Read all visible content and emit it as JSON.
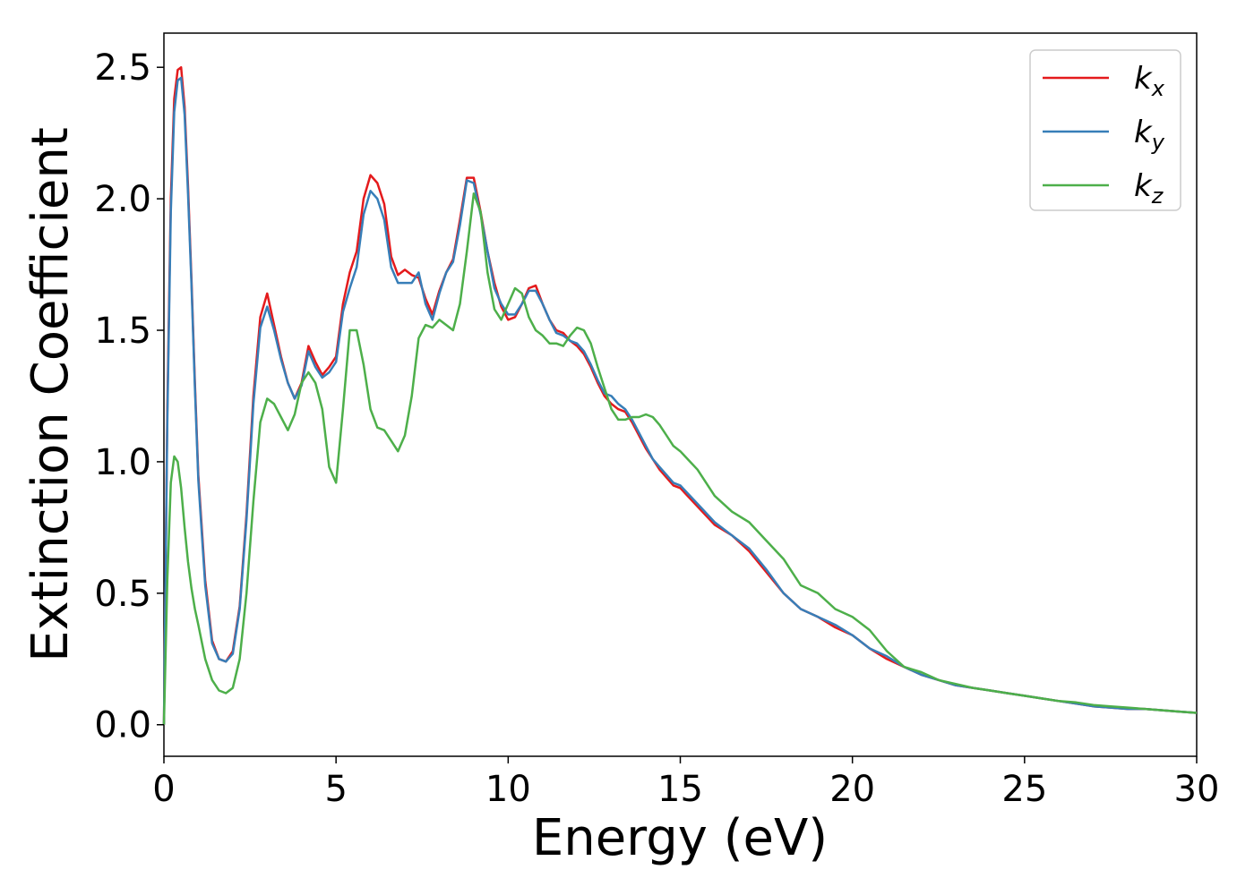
{
  "chart_data": {
    "type": "line",
    "xlabel": "Energy (eV)",
    "ylabel": "Extinction Coefficient",
    "xlim": [
      0,
      30
    ],
    "ylim": [
      -0.12,
      2.63
    ],
    "xticks": [
      "0",
      "5",
      "10",
      "15",
      "20",
      "25",
      "30"
    ],
    "yticks": [
      "0.0",
      "0.5",
      "1.0",
      "1.5",
      "2.0",
      "2.5"
    ],
    "grid": false,
    "legend_position": "top-right",
    "series": [
      {
        "name": "k_x",
        "legend_main": "k",
        "legend_sub": "x",
        "color": "#e41a1c",
        "x": [
          0,
          0.1,
          0.2,
          0.3,
          0.4,
          0.5,
          0.6,
          0.7,
          0.8,
          0.9,
          1.0,
          1.2,
          1.4,
          1.6,
          1.8,
          2.0,
          2.2,
          2.4,
          2.6,
          2.8,
          3.0,
          3.2,
          3.4,
          3.6,
          3.8,
          4.0,
          4.2,
          4.4,
          4.6,
          4.8,
          5.0,
          5.2,
          5.4,
          5.6,
          5.8,
          6.0,
          6.2,
          6.4,
          6.6,
          6.8,
          7.0,
          7.2,
          7.4,
          7.6,
          7.8,
          8.0,
          8.2,
          8.4,
          8.6,
          8.8,
          9.0,
          9.2,
          9.4,
          9.6,
          9.8,
          10.0,
          10.2,
          10.4,
          10.6,
          10.8,
          11.0,
          11.2,
          11.4,
          11.6,
          11.8,
          12.0,
          12.2,
          12.4,
          12.6,
          12.8,
          13.0,
          13.2,
          13.4,
          13.6,
          13.8,
          14.0,
          14.2,
          14.4,
          14.6,
          14.8,
          15.0,
          15.5,
          16.0,
          16.5,
          17.0,
          17.5,
          18.0,
          18.5,
          19.0,
          19.5,
          20.0,
          20.5,
          21.0,
          21.5,
          22.0,
          22.5,
          23.0,
          23.5,
          24.0,
          24.5,
          25.0,
          25.5,
          26.0,
          26.5,
          27.0,
          27.5,
          28.0,
          28.5,
          29.0,
          29.5,
          30.0
        ],
        "y": [
          0.0,
          1.2,
          2.0,
          2.38,
          2.49,
          2.5,
          2.35,
          2.05,
          1.7,
          1.3,
          0.95,
          0.55,
          0.32,
          0.25,
          0.24,
          0.28,
          0.45,
          0.8,
          1.25,
          1.55,
          1.64,
          1.52,
          1.4,
          1.3,
          1.24,
          1.3,
          1.44,
          1.38,
          1.33,
          1.36,
          1.4,
          1.6,
          1.72,
          1.8,
          2.0,
          2.09,
          2.06,
          1.98,
          1.78,
          1.71,
          1.73,
          1.71,
          1.7,
          1.62,
          1.56,
          1.65,
          1.72,
          1.77,
          1.92,
          2.08,
          2.08,
          1.95,
          1.8,
          1.68,
          1.59,
          1.54,
          1.55,
          1.6,
          1.66,
          1.67,
          1.6,
          1.54,
          1.5,
          1.49,
          1.46,
          1.44,
          1.41,
          1.36,
          1.3,
          1.25,
          1.22,
          1.2,
          1.19,
          1.15,
          1.1,
          1.05,
          1.01,
          0.97,
          0.94,
          0.91,
          0.9,
          0.83,
          0.76,
          0.72,
          0.66,
          0.58,
          0.5,
          0.44,
          0.41,
          0.37,
          0.34,
          0.29,
          0.25,
          0.22,
          0.19,
          0.17,
          0.15,
          0.14,
          0.13,
          0.12,
          0.11,
          0.1,
          0.09,
          0.08,
          0.07,
          0.065,
          0.06,
          0.06,
          0.055,
          0.05,
          0.045
        ]
      },
      {
        "name": "k_y",
        "legend_main": "k",
        "legend_sub": "y",
        "color": "#377eb8",
        "x": [
          0,
          0.1,
          0.2,
          0.3,
          0.4,
          0.5,
          0.6,
          0.7,
          0.8,
          0.9,
          1.0,
          1.2,
          1.4,
          1.6,
          1.8,
          2.0,
          2.2,
          2.4,
          2.6,
          2.8,
          3.0,
          3.2,
          3.4,
          3.6,
          3.8,
          4.0,
          4.2,
          4.4,
          4.6,
          4.8,
          5.0,
          5.2,
          5.4,
          5.6,
          5.8,
          6.0,
          6.2,
          6.4,
          6.6,
          6.8,
          7.0,
          7.2,
          7.4,
          7.6,
          7.8,
          8.0,
          8.2,
          8.4,
          8.6,
          8.8,
          9.0,
          9.2,
          9.4,
          9.6,
          9.8,
          10.0,
          10.2,
          10.4,
          10.6,
          10.8,
          11.0,
          11.2,
          11.4,
          11.6,
          11.8,
          12.0,
          12.2,
          12.4,
          12.6,
          12.8,
          13.0,
          13.2,
          13.4,
          13.6,
          13.8,
          14.0,
          14.2,
          14.4,
          14.6,
          14.8,
          15.0,
          15.5,
          16.0,
          16.5,
          17.0,
          17.5,
          18.0,
          18.5,
          19.0,
          19.5,
          20.0,
          20.5,
          21.0,
          21.5,
          22.0,
          22.5,
          23.0,
          23.5,
          24.0,
          24.5,
          25.0,
          25.5,
          26.0,
          26.5,
          27.0,
          27.5,
          28.0,
          28.5,
          29.0,
          29.5,
          30.0
        ],
        "y": [
          0.0,
          1.15,
          1.95,
          2.33,
          2.45,
          2.46,
          2.32,
          2.02,
          1.68,
          1.28,
          0.93,
          0.53,
          0.31,
          0.25,
          0.24,
          0.27,
          0.44,
          0.78,
          1.22,
          1.51,
          1.59,
          1.5,
          1.39,
          1.3,
          1.24,
          1.29,
          1.42,
          1.36,
          1.32,
          1.34,
          1.38,
          1.57,
          1.66,
          1.74,
          1.94,
          2.03,
          2.0,
          1.92,
          1.74,
          1.68,
          1.68,
          1.68,
          1.72,
          1.6,
          1.54,
          1.64,
          1.72,
          1.76,
          1.9,
          2.07,
          2.06,
          1.94,
          1.8,
          1.66,
          1.6,
          1.56,
          1.56,
          1.6,
          1.65,
          1.65,
          1.6,
          1.54,
          1.49,
          1.48,
          1.46,
          1.45,
          1.42,
          1.37,
          1.31,
          1.26,
          1.25,
          1.22,
          1.2,
          1.16,
          1.11,
          1.06,
          1.01,
          0.98,
          0.95,
          0.92,
          0.91,
          0.84,
          0.77,
          0.72,
          0.67,
          0.59,
          0.5,
          0.44,
          0.41,
          0.38,
          0.34,
          0.29,
          0.26,
          0.22,
          0.19,
          0.17,
          0.15,
          0.14,
          0.13,
          0.12,
          0.11,
          0.1,
          0.09,
          0.08,
          0.07,
          0.065,
          0.06,
          0.06,
          0.055,
          0.05,
          0.045
        ]
      },
      {
        "name": "k_z",
        "legend_main": "k",
        "legend_sub": "z",
        "color": "#4daf4a",
        "x": [
          0,
          0.1,
          0.2,
          0.3,
          0.4,
          0.5,
          0.6,
          0.7,
          0.8,
          0.9,
          1.0,
          1.2,
          1.4,
          1.6,
          1.8,
          2.0,
          2.2,
          2.4,
          2.6,
          2.8,
          3.0,
          3.2,
          3.4,
          3.6,
          3.8,
          4.0,
          4.2,
          4.4,
          4.6,
          4.8,
          5.0,
          5.2,
          5.4,
          5.6,
          5.8,
          6.0,
          6.2,
          6.4,
          6.6,
          6.8,
          7.0,
          7.2,
          7.4,
          7.6,
          7.8,
          8.0,
          8.2,
          8.4,
          8.6,
          8.8,
          9.0,
          9.2,
          9.4,
          9.6,
          9.8,
          10.0,
          10.2,
          10.4,
          10.6,
          10.8,
          11.0,
          11.2,
          11.4,
          11.6,
          11.8,
          12.0,
          12.2,
          12.4,
          12.6,
          12.8,
          13.0,
          13.2,
          13.4,
          13.6,
          13.8,
          14.0,
          14.2,
          14.4,
          14.6,
          14.8,
          15.0,
          15.5,
          16.0,
          16.5,
          17.0,
          17.5,
          18.0,
          18.5,
          19.0,
          19.5,
          20.0,
          20.5,
          21.0,
          21.5,
          22.0,
          22.5,
          23.0,
          23.5,
          24.0,
          24.5,
          25.0,
          25.5,
          26.0,
          26.5,
          27.0,
          27.5,
          28.0,
          28.5,
          29.0,
          29.5,
          30.0
        ],
        "y": [
          0.0,
          0.55,
          0.92,
          1.02,
          1.0,
          0.9,
          0.75,
          0.62,
          0.52,
          0.44,
          0.38,
          0.25,
          0.17,
          0.13,
          0.12,
          0.14,
          0.25,
          0.5,
          0.85,
          1.15,
          1.24,
          1.22,
          1.17,
          1.12,
          1.18,
          1.3,
          1.34,
          1.3,
          1.2,
          0.98,
          0.92,
          1.2,
          1.5,
          1.5,
          1.37,
          1.2,
          1.13,
          1.12,
          1.08,
          1.04,
          1.1,
          1.25,
          1.47,
          1.52,
          1.51,
          1.54,
          1.52,
          1.5,
          1.6,
          1.8,
          2.02,
          1.95,
          1.72,
          1.58,
          1.54,
          1.6,
          1.66,
          1.64,
          1.55,
          1.5,
          1.48,
          1.45,
          1.45,
          1.44,
          1.48,
          1.51,
          1.5,
          1.45,
          1.36,
          1.28,
          1.2,
          1.16,
          1.16,
          1.17,
          1.17,
          1.18,
          1.17,
          1.14,
          1.1,
          1.06,
          1.04,
          0.97,
          0.87,
          0.81,
          0.77,
          0.7,
          0.63,
          0.53,
          0.5,
          0.44,
          0.41,
          0.36,
          0.28,
          0.22,
          0.2,
          0.17,
          0.155,
          0.14,
          0.13,
          0.12,
          0.11,
          0.1,
          0.09,
          0.085,
          0.075,
          0.07,
          0.065,
          0.06,
          0.055,
          0.05,
          0.045
        ]
      }
    ]
  }
}
